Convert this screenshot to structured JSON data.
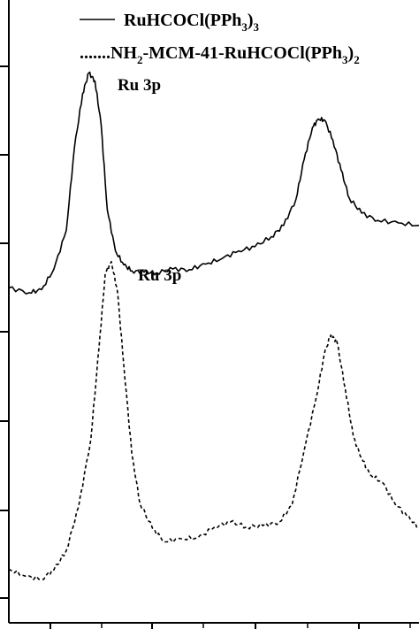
{
  "chart_data": {
    "type": "line",
    "xlabel": "",
    "ylabel": "",
    "xlim": [
      0,
      100
    ],
    "ylim": [
      0,
      100
    ],
    "grid": false,
    "legend_position": "top-right",
    "legend": [
      {
        "series": 0,
        "label_main": "RuHCOCl(PPh",
        "label_sub": "3",
        "label_close": ")",
        "label_sub2": "3",
        "line_style": "solid"
      },
      {
        "series": 1,
        "label_prefix": ".......NH",
        "label_sub_nh": "2",
        "label_main": "-MCM-41-RuHCOCl(PPh",
        "label_sub": "3",
        "label_close": ")",
        "label_sub2": "2",
        "line_style": "dotted"
      }
    ],
    "series": [
      {
        "name": "RuHCOCl(PPh3)3",
        "line_style": "solid",
        "x": [
          0,
          5,
          8,
          11,
          14,
          16,
          18,
          19.5,
          21,
          22.5,
          24,
          26,
          28,
          30,
          33,
          36,
          40,
          44,
          48,
          52,
          56,
          60,
          64,
          67,
          70,
          72,
          74,
          75.5,
          77,
          79,
          81,
          83,
          86,
          90,
          95,
          100
        ],
        "y": [
          53.8,
          53.0,
          53.5,
          56.8,
          63.0,
          76.3,
          85.0,
          88.3,
          87.0,
          80.0,
          66.3,
          59.7,
          57.5,
          56.5,
          56.3,
          56.2,
          56.8,
          56.7,
          57.6,
          58.5,
          59.7,
          60.4,
          62.0,
          63.8,
          68.0,
          74.4,
          79.5,
          80.9,
          80.7,
          77.5,
          72.7,
          68.2,
          65.8,
          64.6,
          64.2,
          63.8
        ]
      },
      {
        "name": "NH2-MCM-41-RuHCOCl(PPh3)2",
        "line_style": "dotted",
        "x": [
          0,
          4,
          8,
          11,
          14,
          17,
          20,
          22,
          23.5,
          25,
          26.5,
          28,
          30,
          32,
          35,
          38,
          42,
          46,
          50,
          54,
          58,
          62,
          66,
          69,
          72,
          75,
          77,
          78.5,
          80,
          82,
          84,
          86,
          88,
          91,
          94,
          97,
          100
        ],
        "y": [
          8.6,
          7.5,
          7.0,
          8.5,
          11.6,
          18.6,
          29.5,
          44.3,
          56.0,
          58.0,
          53.1,
          41.6,
          27.0,
          19.1,
          15.2,
          13.0,
          13.5,
          13.6,
          15.3,
          16.2,
          15.4,
          15.6,
          16.2,
          18.8,
          27.7,
          36.3,
          43.4,
          46.2,
          45.1,
          37.7,
          29.8,
          26.5,
          23.8,
          22.6,
          19.3,
          17.2,
          15.2
        ]
      }
    ],
    "annotations": [
      {
        "text": "Ru 3p",
        "x": 26.5,
        "y": 85.5
      },
      {
        "text": "Ru 3p",
        "x": 31.5,
        "y": 55.0
      }
    ]
  }
}
